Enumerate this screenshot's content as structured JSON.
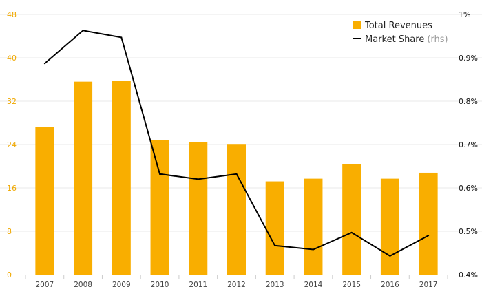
{
  "chart_data": {
    "type": "bar",
    "categories": [
      "2007",
      "2008",
      "2009",
      "2010",
      "2011",
      "2012",
      "2013",
      "2014",
      "2015",
      "2016",
      "2017"
    ],
    "series": [
      {
        "name": "Total Revenues",
        "type": "bar",
        "axis": "left",
        "values": [
          27.3,
          35.6,
          35.7,
          24.8,
          24.4,
          24.1,
          17.2,
          17.7,
          20.4,
          17.7,
          18.8
        ]
      },
      {
        "name": "Market Share",
        "name_suffix": "(rhs)",
        "type": "line",
        "axis": "right",
        "values": [
          0.887,
          0.963,
          0.947,
          0.632,
          0.62,
          0.632,
          0.467,
          0.458,
          0.497,
          0.443,
          0.49
        ]
      }
    ],
    "left_axis": {
      "ylim": [
        0,
        48
      ],
      "ticks": [
        0,
        8,
        16,
        24,
        32,
        40,
        48
      ],
      "tick_labels": [
        "0",
        "8",
        "16",
        "24",
        "32",
        "40",
        "48"
      ]
    },
    "right_axis": {
      "ylim": [
        0.4,
        1.0
      ],
      "ticks": [
        0.4,
        0.5,
        0.6,
        0.7,
        0.8,
        0.9,
        1.0
      ],
      "tick_labels": [
        "0.4%",
        "0.5%",
        "0.6%",
        "0.7%",
        "0.8%",
        "0.9%",
        "1%"
      ]
    },
    "legend_position": "top-right",
    "grid": true,
    "colors": {
      "bar": "#F9AE00",
      "line": "#000000",
      "grid": "#e8e8e8",
      "left_tick": "#F0A800",
      "axis": "#cccccc"
    }
  }
}
